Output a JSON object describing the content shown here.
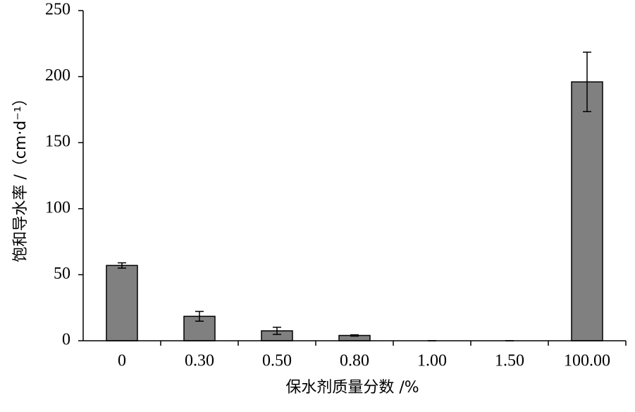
{
  "chart_data": {
    "type": "bar",
    "xlabel": "保水剂质量分数 /%",
    "ylabel": "饱和导水率 /（cm·d⁻¹）",
    "categories": [
      "0",
      "0.30",
      "0.50",
      "0.80",
      "1.00",
      "1.50",
      "100.00"
    ],
    "values": [
      57,
      18.5,
      7.5,
      4,
      0,
      0,
      196
    ],
    "errors": [
      2,
      3.7,
      2.7,
      0.5,
      0,
      0,
      22.5
    ],
    "color": "#808080",
    "ylim": [
      0,
      250
    ],
    "yticks": [
      0,
      50,
      100,
      150,
      200,
      250
    ]
  }
}
